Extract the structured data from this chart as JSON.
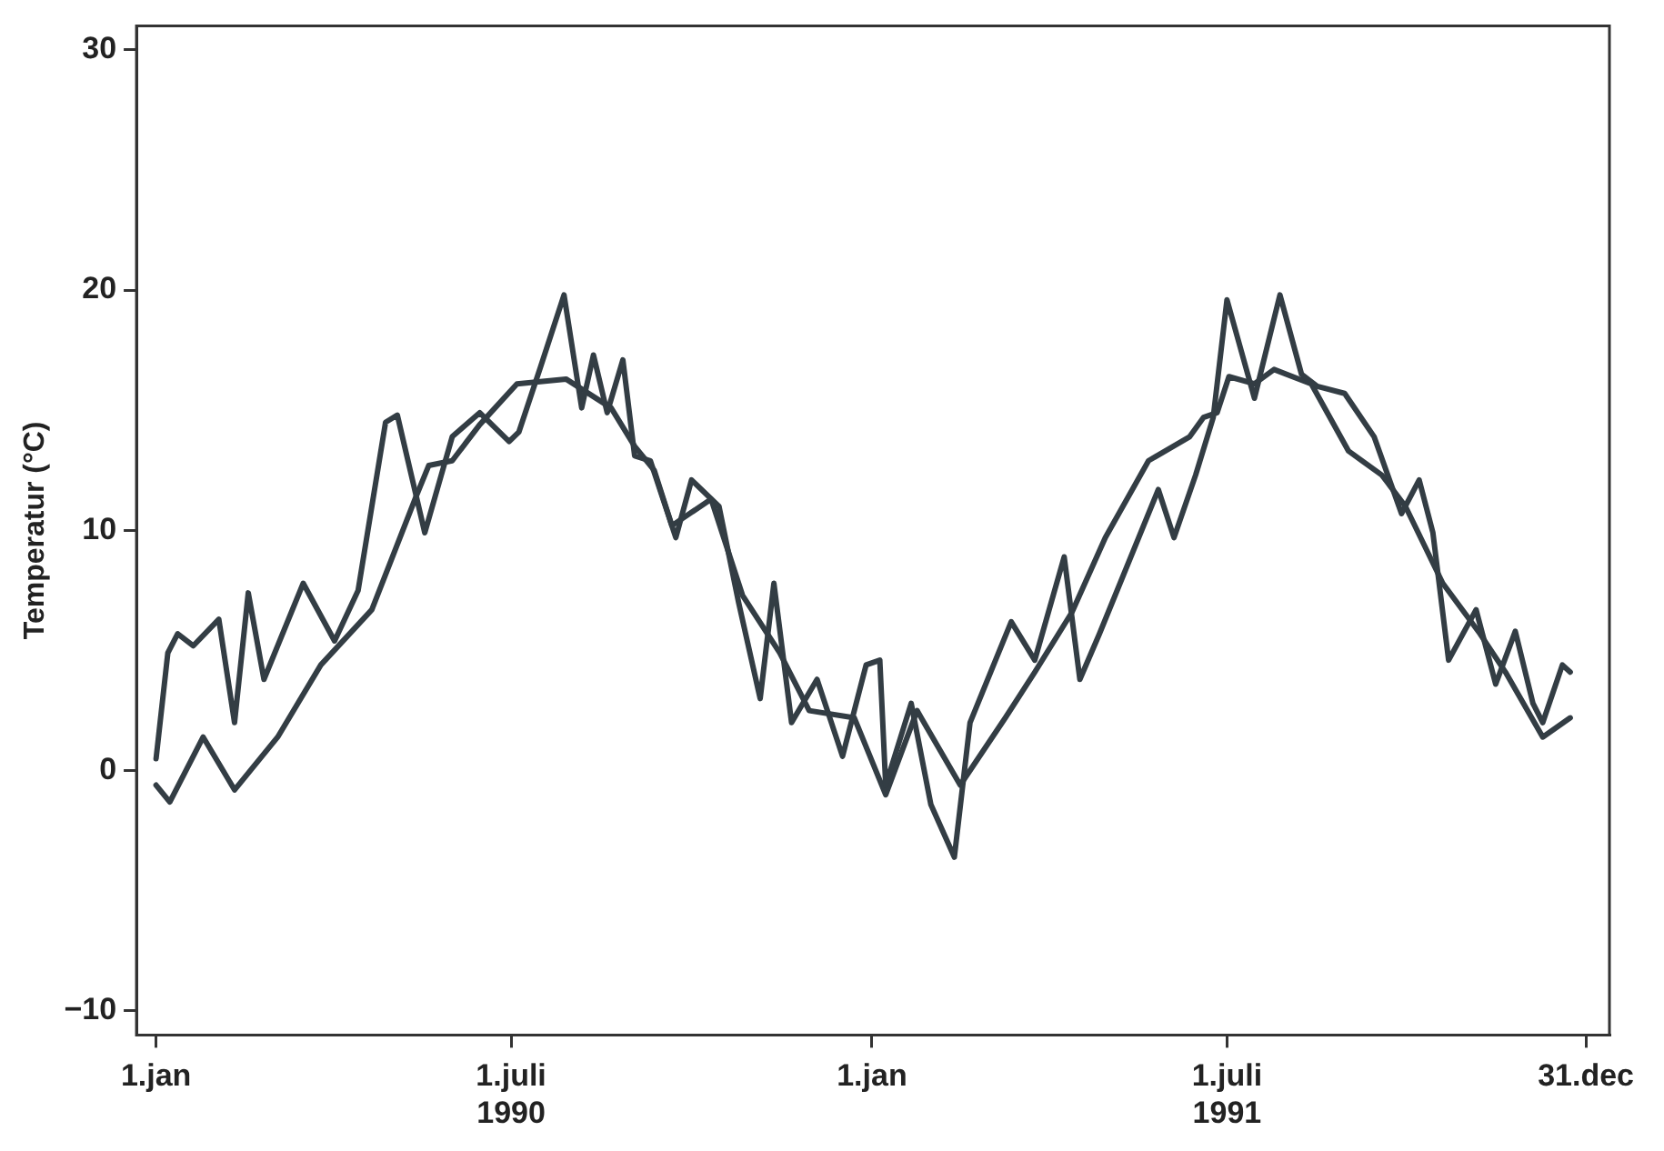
{
  "chart_data": {
    "type": "line",
    "ylabel": "Temperatur (°C)",
    "xlim": [
      "1989-12-22",
      "1992-01-12"
    ],
    "ylim": [
      -11,
      31
    ],
    "xticks": [
      {
        "value": "1990-01-01",
        "label": "1.jan"
      },
      {
        "value": "1990-07-01",
        "label": "1.juli\n1990"
      },
      {
        "value": "1991-01-01",
        "label": "1.jan"
      },
      {
        "value": "1991-07-01",
        "label": "1.juli\n1991"
      },
      {
        "value": "1991-12-31",
        "label": "31.dec"
      }
    ],
    "yticks": [
      {
        "value": -10,
        "label": "−10"
      },
      0,
      10,
      20,
      30
    ],
    "grid": false,
    "legend": false,
    "marker": "none",
    "line_style": "solid",
    "series": [
      {
        "color": "#333d44",
        "x": [
          "1990-01-01",
          "1990-01-07",
          "1990-01-12",
          "1990-01-20",
          "1990-02-02",
          "1990-02-10",
          "1990-02-17",
          "1990-02-25",
          "1990-03-17",
          "1990-04-02",
          "1990-04-14",
          "1990-04-28",
          "1990-05-04",
          "1990-05-18",
          "1990-06-01",
          "1990-06-15",
          "1990-06-30",
          "1990-07-05",
          "1990-07-16",
          "1990-07-28",
          "1990-08-06",
          "1990-08-12",
          "1990-08-19",
          "1990-08-27",
          "1990-09-02",
          "1990-09-10",
          "1990-09-23",
          "1990-10-01",
          "1990-10-15",
          "1990-10-25",
          "1990-11-05",
          "1990-11-12",
          "1990-11-21",
          "1990-12-04",
          "1990-12-17",
          "1990-12-29",
          "1991-01-05",
          "1991-01-08",
          "1991-01-21",
          "1991-01-31",
          "1991-02-12",
          "1991-02-20",
          "1991-03-13",
          "1991-03-25",
          "1991-04-09",
          "1991-04-17",
          "1991-04-27",
          "1991-05-27",
          "1991-06-04",
          "1991-06-15",
          "1991-06-24",
          "1991-07-01",
          "1991-07-15",
          "1991-07-28",
          "1991-08-08",
          "1991-08-16",
          "1991-08-30",
          "1991-09-14",
          "1991-09-28",
          "1991-10-07",
          "1991-10-14",
          "1991-10-22",
          "1991-11-05",
          "1991-11-15",
          "1991-11-25",
          "1991-12-04",
          "1991-12-09",
          "1991-12-19",
          "1991-12-23"
        ],
        "values": [
          0.5,
          4.9,
          5.7,
          5.2,
          6.3,
          2.0,
          7.4,
          3.8,
          7.8,
          5.4,
          7.5,
          14.5,
          14.8,
          9.9,
          13.9,
          14.9,
          13.7,
          14.1,
          16.8,
          19.8,
          15.1,
          17.3,
          14.9,
          17.1,
          13.1,
          12.9,
          9.7,
          12.1,
          11.0,
          7.0,
          3.0,
          7.8,
          2.0,
          3.8,
          0.6,
          4.4,
          4.6,
          -0.6,
          2.8,
          -1.4,
          -3.6,
          2.0,
          6.2,
          4.6,
          8.9,
          3.8,
          5.7,
          11.7,
          9.7,
          12.3,
          14.7,
          19.6,
          15.5,
          19.8,
          16.5,
          16.0,
          15.7,
          13.9,
          10.7,
          12.1,
          9.9,
          4.6,
          6.7,
          3.6,
          5.8,
          2.8,
          2.0,
          4.4,
          4.1
        ]
      },
      {
        "color": "#333d44",
        "x": [
          "1990-01-01",
          "1990-01-08",
          "1990-01-25",
          "1990-02-10",
          "1990-03-04",
          "1990-03-26",
          "1990-04-21",
          "1990-05-13",
          "1990-05-20",
          "1990-06-01",
          "1990-06-15",
          "1990-07-04",
          "1990-07-29",
          "1990-08-21",
          "1990-09-02",
          "1990-09-12",
          "1990-09-21",
          "1990-10-11",
          "1990-10-27",
          "1990-11-15",
          "1990-11-30",
          "1990-12-23",
          "1991-01-08",
          "1991-01-24",
          "1991-02-15",
          "1991-03-10",
          "1991-03-25",
          "1991-04-13",
          "1991-04-30",
          "1991-05-22",
          "1991-06-12",
          "1991-06-19",
          "1991-06-26",
          "1991-07-02",
          "1991-07-15",
          "1991-07-25",
          "1991-08-13",
          "1991-09-01",
          "1991-09-18",
          "1991-09-30",
          "1991-10-19",
          "1991-11-07",
          "1991-11-20",
          "1991-12-09",
          "1991-12-23"
        ],
        "values": [
          -0.6,
          -1.3,
          1.4,
          -0.8,
          1.4,
          4.4,
          6.7,
          11.3,
          12.7,
          12.9,
          14.4,
          16.1,
          16.3,
          15.1,
          13.5,
          12.5,
          10.2,
          11.3,
          7.3,
          4.9,
          2.5,
          2.2,
          -1.0,
          2.5,
          -0.6,
          2.2,
          4.1,
          6.6,
          9.7,
          12.9,
          13.9,
          14.7,
          14.9,
          16.4,
          16.1,
          16.7,
          16.1,
          13.3,
          12.3,
          11.0,
          7.8,
          5.7,
          4.1,
          1.4,
          2.2
        ]
      }
    ]
  }
}
